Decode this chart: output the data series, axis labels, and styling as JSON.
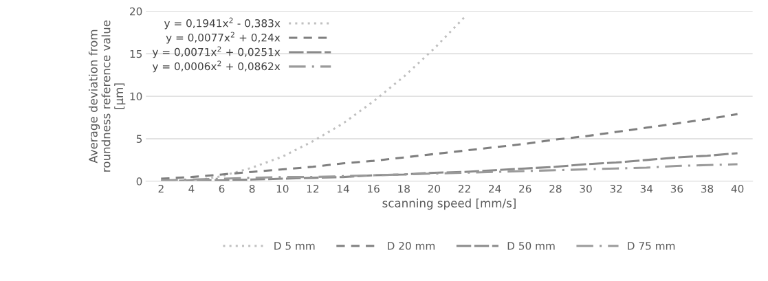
{
  "chart_data": {
    "type": "line",
    "xlabel": "scanning speed [mm/s]",
    "ylabel": "Average deviation from\nroundness reference value\n[µm]",
    "categories": [
      "2",
      "4",
      "6",
      "8",
      "10",
      "12",
      "14",
      "16",
      "18",
      "20",
      "22",
      "24",
      "26",
      "28",
      "30",
      "32",
      "34",
      "36",
      "38",
      "40"
    ],
    "series": [
      {
        "name": "D 5 mm",
        "color": "#c0c0c0",
        "line_style": "dotted",
        "values": [
          0.0,
          0.0,
          0.6,
          1.6,
          2.9,
          4.7,
          6.8,
          9.4,
          12.3,
          15.6,
          19.3,
          null,
          null,
          null,
          null,
          null,
          null,
          null,
          null,
          null
        ]
      },
      {
        "name": "D 20 mm",
        "color": "#7f7f7f",
        "line_style": "dashed",
        "values": [
          0.3,
          0.5,
          0.8,
          1.1,
          1.4,
          1.7,
          2.1,
          2.4,
          2.8,
          3.2,
          3.6,
          4.0,
          4.4,
          4.9,
          5.3,
          5.8,
          6.3,
          6.8,
          7.3,
          7.9
        ]
      },
      {
        "name": "D 50 mm",
        "color": "#8a8a8a",
        "line_style": "longdash",
        "values": [
          0.0,
          0.1,
          0.1,
          0.2,
          0.3,
          0.4,
          0.5,
          0.7,
          0.8,
          1.0,
          1.1,
          1.3,
          1.5,
          1.7,
          2.0,
          2.2,
          2.5,
          2.8,
          3.0,
          3.3
        ]
      },
      {
        "name": "D 75 mm",
        "color": "#9a9a9a",
        "line_style": "dashdot",
        "values": [
          0.1,
          0.2,
          0.3,
          0.4,
          0.5,
          0.5,
          0.6,
          0.7,
          0.8,
          0.9,
          1.0,
          1.1,
          1.2,
          1.3,
          1.4,
          1.5,
          1.6,
          1.8,
          1.9,
          2.0
        ]
      }
    ],
    "annotations": [
      "y = 0,1941x$^{2}$ - 0,383x",
      "y = 0,0077x$^{2}$ + 0,24x",
      "y = 0,0071x$^{2}$ + 0,0251x",
      "y = 0,0006x$^{2}$ + 0,0862x"
    ],
    "ylim": [
      0,
      20
    ],
    "yticks": [
      0,
      5,
      10,
      15,
      20
    ],
    "grid": "y",
    "legend": "bottom",
    "marker": "none"
  }
}
